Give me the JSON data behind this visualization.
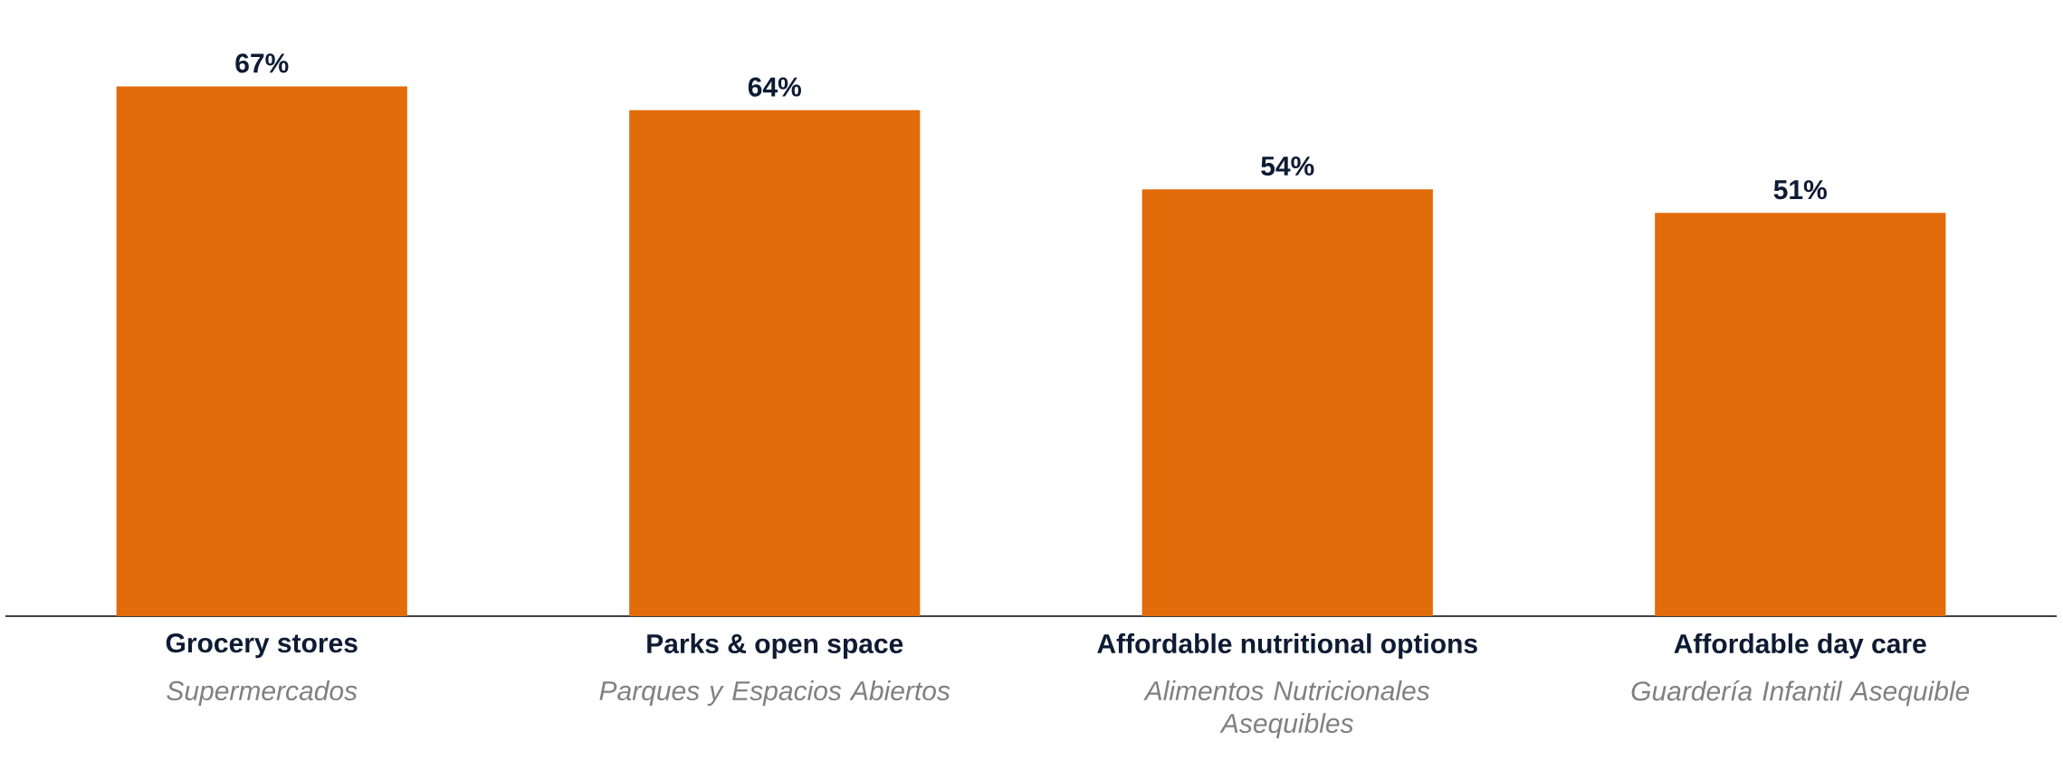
{
  "chart_data": {
    "type": "bar",
    "categories": [
      "Grocery stores",
      "Parks & open space",
      "Affordable nutritional options",
      "Affordable day care"
    ],
    "values": [
      67,
      64,
      54,
      51
    ],
    "value_labels": [
      "67%",
      "64%",
      "54%",
      "51%"
    ],
    "color": "#e26b0a",
    "annotations": [
      "Supermercados",
      "Parques y Espacios Abiertos",
      "Alimentos Nutricionales Asequibles",
      "Guardería Infantil Asequible"
    ]
  }
}
